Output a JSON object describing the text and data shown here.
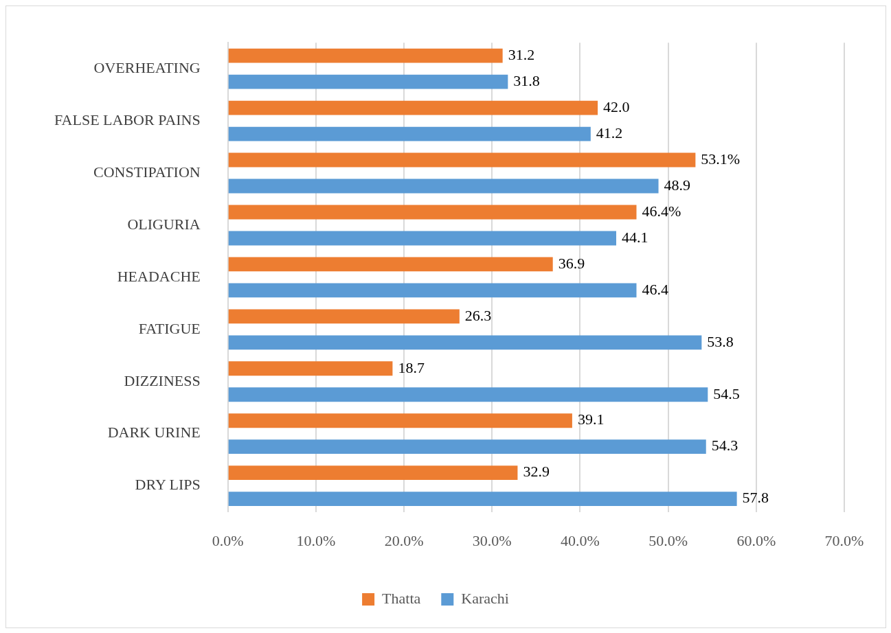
{
  "chart_data": {
    "type": "bar",
    "orientation": "horizontal",
    "categories": [
      "OVERHEATING",
      "FALSE LABOR PAINS",
      "CONSTIPATION",
      "OLIGURIA",
      "HEADACHE",
      "FATIGUE",
      "DIZZINESS",
      "DARK URINE",
      "DRY LIPS"
    ],
    "series": [
      {
        "name": "Thatta",
        "color": "#ed7d31",
        "values": [
          31.2,
          42.0,
          53.1,
          46.4,
          36.9,
          26.3,
          18.7,
          39.1,
          32.9
        ],
        "value_labels": [
          "31.2",
          "42.0",
          "53.1%",
          "46.4%",
          "36.9",
          "26.3",
          "18.7",
          "39.1",
          "32.9"
        ]
      },
      {
        "name": "Karachi",
        "color": "#5b9bd5",
        "values": [
          31.8,
          41.2,
          48.9,
          44.1,
          46.4,
          53.8,
          54.5,
          54.3,
          57.8
        ],
        "value_labels": [
          "31.8",
          "41.2",
          "48.9",
          "44.1",
          "46.4",
          "53.8",
          "54.5",
          "54.3",
          "57.8"
        ]
      }
    ],
    "xlim": [
      0,
      70
    ],
    "xticks": [
      {
        "value": 0,
        "label": "0.0%"
      },
      {
        "value": 10,
        "label": "10.0%"
      },
      {
        "value": 20,
        "label": "20.0%"
      },
      {
        "value": 30,
        "label": "30.0%"
      },
      {
        "value": 40,
        "label": "40.0%"
      },
      {
        "value": 50,
        "label": "50.0%"
      },
      {
        "value": 60,
        "label": "60.0%"
      },
      {
        "value": 70,
        "label": "70.0%"
      }
    ],
    "grid": "x",
    "legend": "bottom"
  }
}
